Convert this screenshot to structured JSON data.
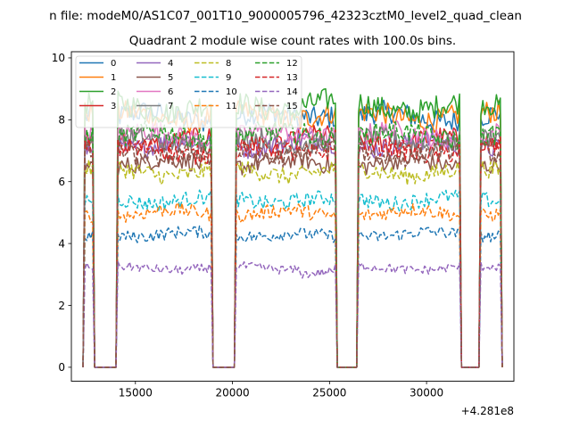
{
  "chart_data": {
    "type": "line",
    "suptitle": "n file: modeM0/AS1C07_001T10_9000005796_42323cztM0_level2_quad_clean",
    "title": "Quadrant 2 module wise count rates with 100.0s bins.",
    "xlabel": "",
    "ylabel": "",
    "x_offset_label": "+4.281e8",
    "xlim": [
      11700,
      34500
    ],
    "ylim": [
      -0.45,
      10.2
    ],
    "xticks": [
      15000,
      20000,
      25000,
      30000
    ],
    "xtick_labels": [
      "15000",
      "20000",
      "25000",
      "30000"
    ],
    "yticks": [
      0,
      2,
      4,
      6,
      8,
      10
    ],
    "ytick_labels": [
      "0",
      "2",
      "4",
      "6",
      "8",
      "10"
    ],
    "grid": false,
    "legend_position": "top-left",
    "legend_columns": 4,
    "orbit_segments": [
      {
        "start": 12400,
        "end": 12800
      },
      {
        "start": 14100,
        "end": 18900
      },
      {
        "start": 20200,
        "end": 25300
      },
      {
        "start": 26500,
        "end": 31700
      },
      {
        "start": 32800,
        "end": 33800
      }
    ],
    "series": [
      {
        "name": "0",
        "color": "#1f77b4",
        "dash": "solid",
        "level": 8.1
      },
      {
        "name": "1",
        "color": "#ff7f0e",
        "dash": "solid",
        "level": 8.1
      },
      {
        "name": "2",
        "color": "#2ca02c",
        "dash": "solid",
        "level": 8.4
      },
      {
        "name": "3",
        "color": "#d62728",
        "dash": "solid",
        "level": 7.3
      },
      {
        "name": "4",
        "color": "#9467bd",
        "dash": "solid",
        "level": 7.2
      },
      {
        "name": "5",
        "color": "#8c564b",
        "dash": "solid",
        "level": 6.6
      },
      {
        "name": "6",
        "color": "#e377c2",
        "dash": "solid",
        "level": 7.5
      },
      {
        "name": "7",
        "color": "#7f7f7f",
        "dash": "solid",
        "level": 7.3
      },
      {
        "name": "8",
        "color": "#bcbd22",
        "dash": "dashed",
        "level": 6.3
      },
      {
        "name": "9",
        "color": "#17becf",
        "dash": "dashed",
        "level": 5.4
      },
      {
        "name": "10",
        "color": "#1f77b4",
        "dash": "dashed",
        "level": 4.3
      },
      {
        "name": "11",
        "color": "#ff7f0e",
        "dash": "dashed",
        "level": 5.0
      },
      {
        "name": "12",
        "color": "#2ca02c",
        "dash": "dashed",
        "level": 7.5
      },
      {
        "name": "13",
        "color": "#d62728",
        "dash": "dashed",
        "level": 7.0
      },
      {
        "name": "14",
        "color": "#9467bd",
        "dash": "dashed",
        "level": 3.2
      },
      {
        "name": "15",
        "color": "#8c564b",
        "dash": "dashed",
        "level": 6.9
      }
    ]
  }
}
